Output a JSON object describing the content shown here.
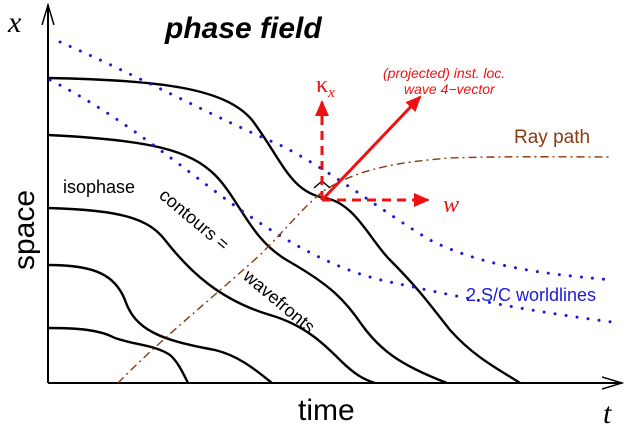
{
  "figure": {
    "title": "phase field",
    "axes": {
      "x_symbol": "x",
      "t_symbol": "t",
      "x_label": "space",
      "t_label": "time"
    },
    "labels": {
      "ray_path": "Ray path",
      "isophase_1": "isophase",
      "isophase_2": "contours =",
      "isophase_3": "wavefronts",
      "worldlines": "2 S/C worldlines",
      "wave_vector_line1": "(projected) inst. loc.",
      "wave_vector_line2": "wave 4−vector",
      "kappa_x": "κ",
      "kappa_sub": "x",
      "omega": "w"
    },
    "colors": {
      "axes": "#000000",
      "wavefronts": "#000000",
      "worldlines": "#1a1adb",
      "ray_path": "#8b3a0e",
      "vector": "#ee1111",
      "labels_red": "#ee1111",
      "labels_blue": "#1a1adb",
      "labels_brown": "#8b3a0e"
    }
  }
}
